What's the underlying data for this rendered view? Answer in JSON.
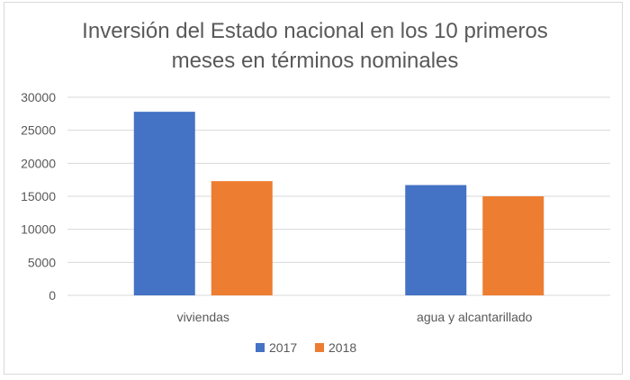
{
  "chart_data": {
    "type": "bar",
    "title_lines": [
      "Inversión del Estado nacional en los 10 primeros",
      "meses en términos nominales"
    ],
    "categories": [
      "viviendas",
      "agua y alcantarillado"
    ],
    "series": [
      {
        "name": "2017",
        "values": [
          27800,
          16700
        ],
        "color": "#4472c4"
      },
      {
        "name": "2018",
        "values": [
          17300,
          15000
        ],
        "color": "#ed7d31"
      }
    ],
    "y_ticks": [
      "0",
      "5000",
      "10000",
      "15000",
      "20000",
      "25000",
      "30000"
    ],
    "ylim": [
      0,
      30000
    ],
    "grid": true,
    "legend_position": "bottom"
  }
}
